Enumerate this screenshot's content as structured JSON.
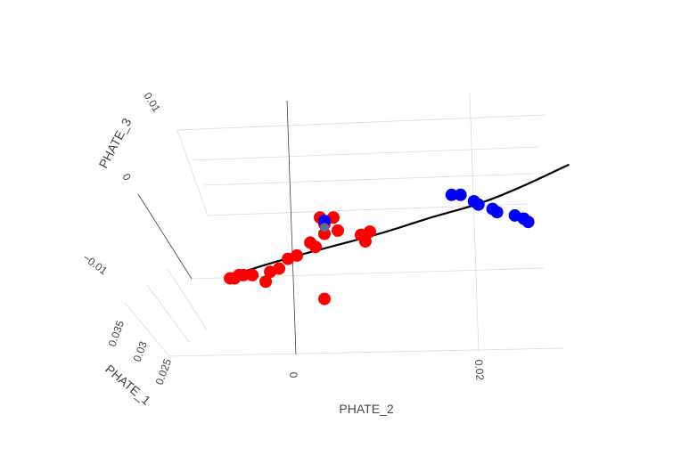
{
  "chart_data": {
    "type": "scatter",
    "projection": "3d",
    "title": "",
    "axes": {
      "x": {
        "label": "PHATE_2",
        "ticks": [
          "0",
          "0.02"
        ]
      },
      "y": {
        "label": "PHATE_1",
        "ticks": [
          "0.025",
          "0.03",
          "0.035"
        ]
      },
      "z": {
        "label": "PHATE_3",
        "ticks": [
          "−0.01",
          "0",
          "0.01"
        ]
      }
    },
    "grid": true,
    "legend": "none",
    "colors": {
      "series_red": "#ff0000",
      "series_blue": "#0000ff",
      "highlight": "#5f6f8f",
      "trajectory": "#000000"
    },
    "series": [
      {
        "color": "red",
        "points": [
          [
            -0.0075,
            0.029,
            -0.009
          ],
          [
            -0.007,
            0.029,
            -0.009
          ],
          [
            -0.0065,
            0.029,
            -0.0085
          ],
          [
            -0.006,
            0.029,
            -0.0085
          ],
          [
            -0.005,
            0.029,
            -0.0085
          ],
          [
            -0.003,
            0.029,
            -0.008
          ],
          [
            -0.002,
            0.029,
            -0.0075
          ],
          [
            -0.001,
            0.029,
            -0.006
          ],
          [
            0.0,
            0.029,
            -0.0055
          ],
          [
            0.002,
            0.03,
            -0.004
          ],
          [
            0.003,
            0.03,
            -0.002
          ],
          [
            0.003,
            0.03,
            -0.0005
          ],
          [
            0.0025,
            0.03,
            0.0005
          ],
          [
            0.004,
            0.03,
            0.0005
          ],
          [
            0.0045,
            0.03,
            -0.0015
          ],
          [
            0.007,
            0.031,
            -0.002
          ],
          [
            0.0075,
            0.031,
            -0.003
          ],
          [
            0.008,
            0.031,
            -0.0015
          ],
          [
            0.0015,
            0.029,
            -0.0035
          ],
          [
            0.003,
            0.03,
            -0.012
          ],
          [
            -0.0035,
            0.029,
            -0.0095
          ]
        ]
      },
      {
        "color": "blue",
        "points": [
          [
            0.017,
            0.033,
            0.0045
          ],
          [
            0.018,
            0.033,
            0.0045
          ],
          [
            0.0195,
            0.033,
            0.0035
          ],
          [
            0.02,
            0.033,
            0.003
          ],
          [
            0.0215,
            0.034,
            0.0025
          ],
          [
            0.022,
            0.034,
            0.002
          ],
          [
            0.024,
            0.034,
            0.0015
          ],
          [
            0.025,
            0.034,
            0.001
          ],
          [
            0.0255,
            0.034,
            0.0005
          ],
          [
            0.003,
            0.03,
            0.0
          ]
        ]
      },
      {
        "color": "highlight",
        "points": [
          [
            0.003,
            0.03,
            -0.001
          ]
        ]
      }
    ],
    "trajectory": [
      [
        -0.008,
        0.029,
        -0.009
      ],
      [
        -0.005,
        0.029,
        -0.0075
      ],
      [
        0.0,
        0.029,
        -0.0055
      ],
      [
        0.005,
        0.03,
        -0.0035
      ],
      [
        0.01,
        0.031,
        -0.0015
      ],
      [
        0.015,
        0.032,
        0.001
      ],
      [
        0.02,
        0.033,
        0.003
      ],
      [
        0.025,
        0.034,
        0.006
      ],
      [
        0.03,
        0.035,
        0.0095
      ]
    ]
  }
}
